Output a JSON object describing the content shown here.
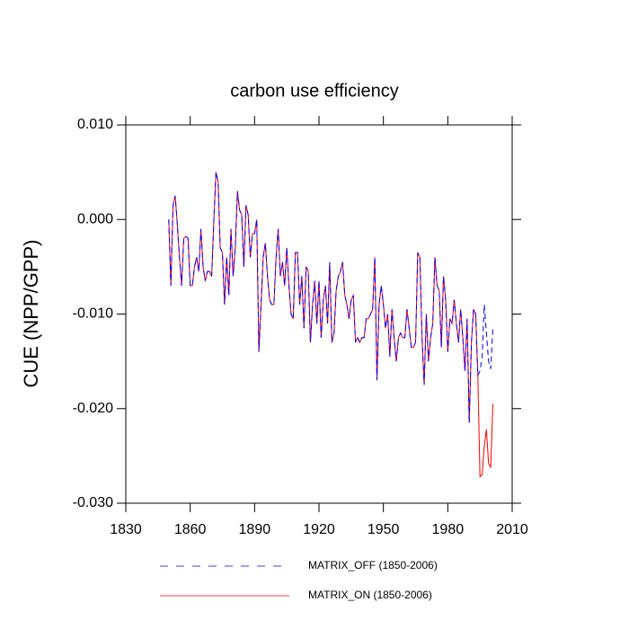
{
  "chart_data": {
    "type": "line",
    "title": "carbon use efficiency",
    "y_label": "CUE  (NPP/GPP)",
    "x": [
      1850,
      1851,
      1852,
      1853,
      1854,
      1855,
      1856,
      1857,
      1858,
      1859,
      1860,
      1861,
      1862,
      1863,
      1864,
      1865,
      1866,
      1867,
      1868,
      1869,
      1870,
      1871,
      1872,
      1873,
      1874,
      1875,
      1876,
      1877,
      1878,
      1879,
      1880,
      1881,
      1882,
      1883,
      1884,
      1885,
      1886,
      1887,
      1888,
      1889,
      1890,
      1891,
      1892,
      1893,
      1894,
      1895,
      1896,
      1897,
      1898,
      1899,
      1900,
      1901,
      1902,
      1903,
      1904,
      1905,
      1906,
      1907,
      1908,
      1909,
      1910,
      1911,
      1912,
      1913,
      1914,
      1915,
      1916,
      1917,
      1918,
      1919,
      1920,
      1921,
      1922,
      1923,
      1924,
      1925,
      1926,
      1927,
      1928,
      1929,
      1930,
      1931,
      1932,
      1933,
      1934,
      1935,
      1936,
      1937,
      1938,
      1939,
      1940,
      1941,
      1942,
      1943,
      1944,
      1945,
      1946,
      1947,
      1948,
      1949,
      1950,
      1951,
      1952,
      1953,
      1954,
      1955,
      1956,
      1957,
      1958,
      1959,
      1960,
      1961,
      1962,
      1963,
      1964,
      1965,
      1966,
      1967,
      1968,
      1969,
      1970,
      1971,
      1972,
      1973,
      1974,
      1975,
      1976,
      1977,
      1978,
      1979,
      1980,
      1981,
      1982,
      1983,
      1984,
      1985,
      1986,
      1987,
      1988,
      1989,
      1990,
      1991,
      1992,
      1993,
      1994,
      1995,
      1996,
      1997,
      1998,
      1999,
      2000,
      2001
    ],
    "series": [
      {
        "name": "MATRIX_OFF (1850-2006)",
        "color": "#0000ff",
        "dash": true,
        "values": [
          0.0,
          -0.007,
          0.0015,
          0.0025,
          -0.0005,
          -0.004,
          -0.007,
          -0.002,
          -0.0018,
          -0.002,
          -0.007,
          -0.007,
          -0.005,
          -0.004,
          -0.0055,
          -0.001,
          -0.005,
          -0.0065,
          -0.0055,
          -0.0055,
          -0.006,
          -0.0002,
          0.005,
          0.004,
          -0.003,
          -0.0035,
          -0.009,
          -0.004,
          -0.008,
          -0.001,
          -0.006,
          -0.003,
          0.003,
          0.001,
          0.0005,
          -0.005,
          0.0015,
          0.0005,
          -0.004,
          -0.0015,
          -0.0015,
          0.0,
          -0.014,
          -0.009,
          -0.004,
          -0.0025,
          -0.006,
          -0.0085,
          -0.009,
          -0.009,
          -0.004,
          -0.001,
          -0.006,
          -0.0045,
          -0.007,
          -0.003,
          -0.007,
          -0.01,
          -0.0105,
          -0.0035,
          -0.0035,
          -0.009,
          -0.006,
          -0.0115,
          -0.005,
          -0.0055,
          -0.013,
          -0.009,
          -0.0065,
          -0.011,
          -0.0065,
          -0.0125,
          -0.0085,
          -0.007,
          -0.011,
          -0.0045,
          -0.013,
          -0.012,
          -0.0075,
          -0.006,
          -0.0055,
          -0.0045,
          -0.008,
          -0.009,
          -0.0105,
          -0.0085,
          -0.008,
          -0.013,
          -0.0125,
          -0.013,
          -0.0125,
          -0.0125,
          -0.0105,
          -0.0105,
          -0.01,
          -0.0095,
          -0.004,
          -0.017,
          -0.009,
          -0.007,
          -0.009,
          -0.0115,
          -0.01,
          -0.0145,
          -0.0095,
          -0.0125,
          -0.015,
          -0.0125,
          -0.012,
          -0.0125,
          -0.0125,
          -0.0095,
          -0.0115,
          -0.0135,
          -0.0135,
          -0.013,
          -0.0035,
          -0.004,
          -0.0125,
          -0.0175,
          -0.01,
          -0.015,
          -0.0125,
          -0.011,
          -0.004,
          -0.007,
          -0.0075,
          -0.0135,
          -0.006,
          -0.0085,
          -0.014,
          -0.0105,
          -0.011,
          -0.0085,
          -0.011,
          -0.013,
          -0.0095,
          -0.0125,
          -0.016,
          -0.0105,
          -0.0215,
          -0.013,
          -0.0095,
          -0.01,
          -0.0165,
          -0.016,
          -0.0145,
          -0.009,
          -0.012,
          -0.015,
          -0.0158,
          -0.0115
        ]
      },
      {
        "name": "MATRIX_ON (1850-2006)",
        "color": "#ff0000",
        "dash": false,
        "values": [
          0.0,
          -0.007,
          0.0015,
          0.0025,
          -0.0005,
          -0.004,
          -0.007,
          -0.002,
          -0.0018,
          -0.002,
          -0.007,
          -0.007,
          -0.005,
          -0.004,
          -0.0055,
          -0.001,
          -0.005,
          -0.0065,
          -0.0055,
          -0.0055,
          -0.006,
          -0.0002,
          0.005,
          0.004,
          -0.003,
          -0.0035,
          -0.009,
          -0.004,
          -0.008,
          -0.001,
          -0.006,
          -0.003,
          0.003,
          0.001,
          0.0005,
          -0.005,
          0.0015,
          0.0005,
          -0.004,
          -0.0015,
          -0.0015,
          0.0,
          -0.014,
          -0.009,
          -0.004,
          -0.0025,
          -0.006,
          -0.0085,
          -0.009,
          -0.009,
          -0.004,
          -0.001,
          -0.006,
          -0.0045,
          -0.007,
          -0.003,
          -0.007,
          -0.01,
          -0.0105,
          -0.0035,
          -0.0035,
          -0.009,
          -0.006,
          -0.0115,
          -0.005,
          -0.0055,
          -0.013,
          -0.009,
          -0.0065,
          -0.011,
          -0.0065,
          -0.0125,
          -0.0085,
          -0.007,
          -0.011,
          -0.0045,
          -0.013,
          -0.012,
          -0.0075,
          -0.006,
          -0.0055,
          -0.0045,
          -0.008,
          -0.009,
          -0.0105,
          -0.0085,
          -0.008,
          -0.013,
          -0.0125,
          -0.013,
          -0.0125,
          -0.0125,
          -0.0105,
          -0.0105,
          -0.01,
          -0.0095,
          -0.004,
          -0.017,
          -0.009,
          -0.007,
          -0.009,
          -0.0115,
          -0.01,
          -0.0145,
          -0.0095,
          -0.0125,
          -0.015,
          -0.0125,
          -0.012,
          -0.0125,
          -0.0125,
          -0.0095,
          -0.0115,
          -0.0135,
          -0.0135,
          -0.013,
          -0.0035,
          -0.004,
          -0.0125,
          -0.0175,
          -0.01,
          -0.015,
          -0.0125,
          -0.011,
          -0.004,
          -0.007,
          -0.0075,
          -0.0135,
          -0.006,
          -0.0085,
          -0.014,
          -0.0105,
          -0.011,
          -0.0085,
          -0.011,
          -0.013,
          -0.0095,
          -0.0125,
          -0.016,
          -0.0105,
          -0.0215,
          -0.013,
          -0.0095,
          -0.01,
          -0.0165,
          -0.0272,
          -0.027,
          -0.024,
          -0.0222,
          -0.0258,
          -0.0262,
          -0.0195
        ]
      }
    ],
    "xlim": [
      1830,
      2010
    ],
    "xticks": [
      1830,
      1860,
      1890,
      1920,
      1950,
      1980,
      2010
    ],
    "ylim": [
      -0.03,
      0.01
    ],
    "yticks": [
      {
        "value": -0.03,
        "label": "-0.030"
      },
      {
        "value": -0.02,
        "label": "-0.020"
      },
      {
        "value": -0.01,
        "label": "-0.010"
      },
      {
        "value": 0,
        "label": "0.000"
      },
      {
        "value": 0.01,
        "label": "0.010"
      }
    ],
    "legend": "bottom"
  }
}
